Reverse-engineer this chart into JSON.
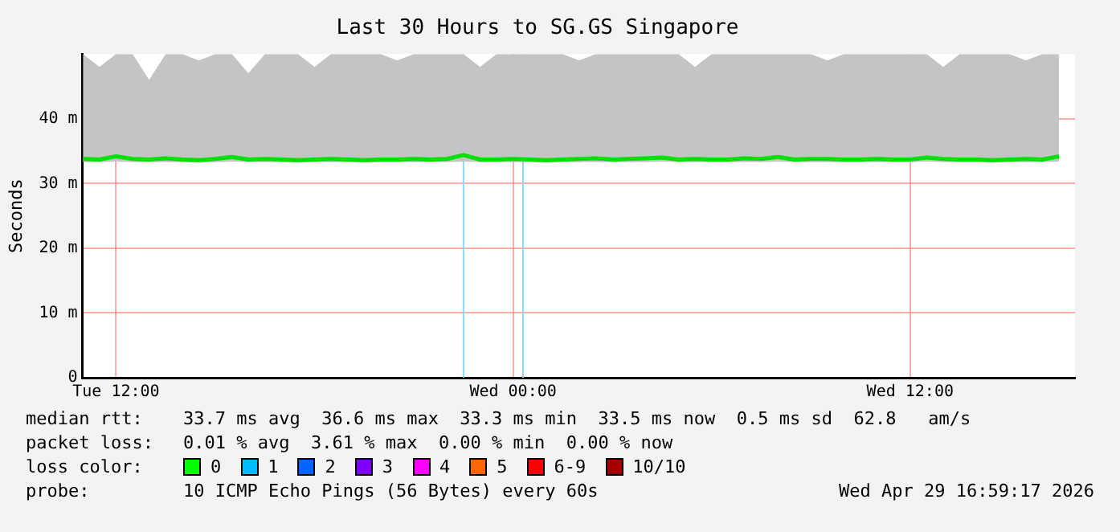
{
  "chart_data": {
    "type": "line",
    "title": "Last 30 Hours to SG.GS Singapore",
    "ylabel": "Seconds",
    "x": [
      "2026-04-28T11:00",
      "2026-04-28T11:30",
      "2026-04-28T12:00",
      "2026-04-28T12:30",
      "2026-04-28T13:00",
      "2026-04-28T13:30",
      "2026-04-28T14:00",
      "2026-04-28T14:30",
      "2026-04-28T15:00",
      "2026-04-28T15:30",
      "2026-04-28T16:00",
      "2026-04-28T16:30",
      "2026-04-28T17:00",
      "2026-04-28T17:30",
      "2026-04-28T18:00",
      "2026-04-28T18:30",
      "2026-04-28T19:00",
      "2026-04-28T19:30",
      "2026-04-28T20:00",
      "2026-04-28T20:30",
      "2026-04-28T21:00",
      "2026-04-28T21:30",
      "2026-04-28T22:00",
      "2026-04-28T22:30",
      "2026-04-28T23:00",
      "2026-04-28T23:30",
      "2026-04-29T00:00",
      "2026-04-29T00:30",
      "2026-04-29T01:00",
      "2026-04-29T01:30",
      "2026-04-29T02:00",
      "2026-04-29T02:30",
      "2026-04-29T03:00",
      "2026-04-29T03:30",
      "2026-04-29T04:00",
      "2026-04-29T04:30",
      "2026-04-29T05:00",
      "2026-04-29T05:30",
      "2026-04-29T06:00",
      "2026-04-29T06:30",
      "2026-04-29T07:00",
      "2026-04-29T07:30",
      "2026-04-29T08:00",
      "2026-04-29T08:30",
      "2026-04-29T09:00",
      "2026-04-29T09:30",
      "2026-04-29T10:00",
      "2026-04-29T10:30",
      "2026-04-29T11:00",
      "2026-04-29T11:30",
      "2026-04-29T12:00",
      "2026-04-29T12:30",
      "2026-04-29T13:00",
      "2026-04-29T13:30",
      "2026-04-29T14:00",
      "2026-04-29T14:30",
      "2026-04-29T15:00",
      "2026-04-29T15:30",
      "2026-04-29T16:00",
      "2026-04-29T16:30"
    ],
    "series": [
      {
        "color": "#00e000",
        "values": [
          33.8,
          33.7,
          34.2,
          33.8,
          33.7,
          33.9,
          33.7,
          33.6,
          33.8,
          34.1,
          33.7,
          33.8,
          33.7,
          33.6,
          33.7,
          33.8,
          33.7,
          33.6,
          33.7,
          33.7,
          33.8,
          33.7,
          33.8,
          34.4,
          33.7,
          33.7,
          33.8,
          33.7,
          33.6,
          33.7,
          33.8,
          33.9,
          33.7,
          33.8,
          33.9,
          34.0,
          33.7,
          33.8,
          33.7,
          33.7,
          33.9,
          33.8,
          34.1,
          33.7,
          33.8,
          33.8,
          33.7,
          33.7,
          33.8,
          33.7,
          33.7,
          34.0,
          33.8,
          33.7,
          33.7,
          33.6,
          33.7,
          33.8,
          33.7,
          34.2
        ],
        "lower": [
          33.3,
          33.3,
          33.4,
          33.3,
          33.3,
          33.3,
          33.3,
          33.2,
          33.3,
          33.4,
          33.3,
          33.3,
          33.3,
          33.2,
          33.3,
          33.3,
          33.3,
          33.2,
          33.3,
          33.3,
          33.3,
          33.3,
          33.3,
          33.4,
          33.3,
          33.3,
          33.3,
          33.3,
          33.2,
          33.3,
          33.3,
          33.3,
          33.3,
          33.3,
          33.3,
          33.4,
          33.3,
          33.3,
          33.3,
          33.3,
          33.3,
          33.3,
          33.4,
          33.3,
          33.3,
          33.3,
          33.3,
          33.3,
          33.3,
          33.3,
          33.3,
          33.4,
          33.3,
          33.3,
          33.3,
          33.2,
          33.3,
          33.3,
          33.3,
          33.4
        ],
        "upper": [
          50,
          48,
          50,
          50,
          46,
          50,
          50,
          49,
          50,
          50,
          47,
          50,
          50,
          50,
          48,
          50,
          50,
          50,
          50,
          49,
          50,
          50,
          50,
          50,
          48,
          50,
          50,
          50,
          50,
          50,
          49,
          50,
          50,
          50,
          50,
          50,
          50,
          48,
          50,
          50,
          50,
          50,
          50,
          50,
          50,
          49,
          50,
          50,
          50,
          50,
          50,
          50,
          48,
          50,
          50,
          50,
          50,
          49,
          50,
          50
        ]
      }
    ],
    "xlim": [
      "2026-04-28T10:59",
      "2026-04-29T16:59"
    ],
    "xticks": [
      {
        "value": "2026-04-28T12:00",
        "label": "Tue 12:00"
      },
      {
        "value": "2026-04-29T00:00",
        "label": "Wed 00:00"
      },
      {
        "value": "2026-04-29T12:00",
        "label": "Wed 12:00"
      }
    ],
    "ylim": [
      0,
      50
    ],
    "yticks": [
      0,
      {
        "value": 10,
        "label": "10 m"
      },
      {
        "value": 20,
        "label": "20 m"
      },
      {
        "value": 30,
        "label": "30 m"
      },
      {
        "value": 40,
        "label": "40 m"
      }
    ],
    "ref_lines": [
      {
        "axis": "x",
        "value": "2026-04-28T22:30",
        "color": "#8fd8f0"
      },
      {
        "axis": "x",
        "value": "2026-04-29T00:18",
        "color": "#8fd8f0"
      }
    ],
    "grid": true,
    "marker": "none",
    "line_style": "solid",
    "annotations": [
      "median rtt:",
      "33.7 ms avg  36.6 ms max  33.3 ms min  33.5 ms now  0.5 ms sd  62.8   am/s",
      "packet loss:",
      "0.01 % avg  3.61 % max  0.00 % min  0.00 % now",
      "loss color:",
      "0",
      "1",
      "2",
      "3",
      "4",
      "5",
      "6-9",
      "10/10",
      "probe:",
      "10 ICMP Echo Pings (56 Bytes) every 60s",
      "Wed Apr 29 16:59:17 2026"
    ]
  }
}
